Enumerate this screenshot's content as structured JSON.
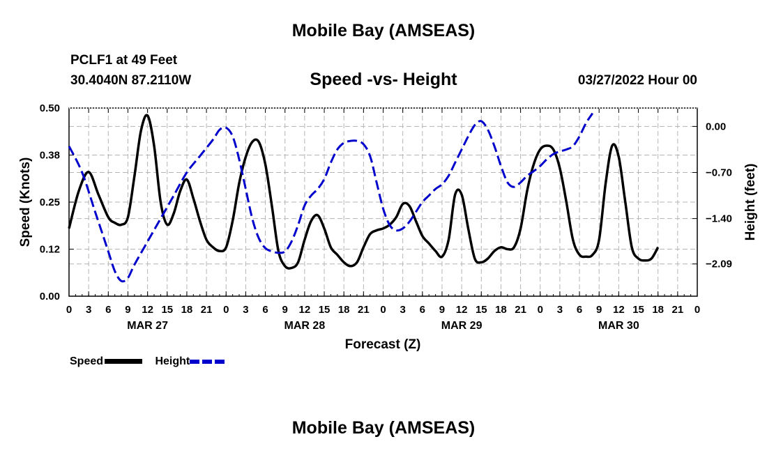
{
  "chart_data": {
    "type": "line",
    "title": "Mobile Bay (AMSEAS)",
    "station": "PCLF1 at 49 Feet",
    "location": "30.4040N  87.2110W",
    "subtitle": "Speed -vs- Height",
    "timestamp": "03/27/2022 Hour 00",
    "footer_title": "Mobile Bay (AMSEAS)",
    "xlabel": "Forecast (Z)",
    "ylabel_left": "Speed (Knots)",
    "ylabel_right": "Height (feet)",
    "x_range_hours": [
      0,
      96
    ],
    "y_left_range": [
      0,
      0.5
    ],
    "y_right_range": [
      -2.58,
      0.28
    ],
    "y_left_ticks": [
      "0.00",
      "0.12",
      "0.25",
      "0.38",
      "0.50"
    ],
    "y_left_tick_values": [
      0,
      0.125,
      0.25,
      0.375,
      0.5
    ],
    "y_right_ticks": [
      "0.00",
      "−0.70",
      "−1.40",
      "−2.09"
    ],
    "y_right_tick_values": [
      0,
      -0.7,
      -1.4,
      -2.09
    ],
    "x_tick_hours": [
      0,
      3,
      6,
      9,
      12,
      15,
      18,
      21,
      24,
      27,
      30,
      33,
      36,
      39,
      42,
      45,
      48,
      51,
      54,
      57,
      60,
      63,
      66,
      69,
      72,
      75,
      78,
      81,
      84,
      87,
      90,
      93,
      96
    ],
    "x_tick_labels": [
      "0",
      "3",
      "6",
      "9",
      "12",
      "15",
      "18",
      "21",
      "0",
      "3",
      "6",
      "9",
      "12",
      "15",
      "18",
      "21",
      "0",
      "3",
      "6",
      "9",
      "12",
      "15",
      "18",
      "21",
      "0",
      "3",
      "6",
      "9",
      "12",
      "15",
      "18",
      "21",
      "0"
    ],
    "day_labels": [
      {
        "hour": 12,
        "label": "MAR 27"
      },
      {
        "hour": 36,
        "label": "MAR 28"
      },
      {
        "hour": 60,
        "label": "MAR 29"
      },
      {
        "hour": 84,
        "label": "MAR 30"
      }
    ],
    "grid": true,
    "legend_position": "bottom-left",
    "series": [
      {
        "name": "Speed",
        "axis": "left",
        "color": "#000000",
        "style": "solid",
        "points": [
          [
            0,
            0.18
          ],
          [
            1.5,
            0.28
          ],
          [
            3,
            0.33
          ],
          [
            4.5,
            0.27
          ],
          [
            6,
            0.21
          ],
          [
            7,
            0.195
          ],
          [
            8,
            0.19
          ],
          [
            9,
            0.21
          ],
          [
            10,
            0.32
          ],
          [
            11,
            0.44
          ],
          [
            12,
            0.48
          ],
          [
            13,
            0.4
          ],
          [
            14,
            0.25
          ],
          [
            15,
            0.19
          ],
          [
            16,
            0.22
          ],
          [
            17,
            0.28
          ],
          [
            18,
            0.31
          ],
          [
            19,
            0.26
          ],
          [
            20,
            0.2
          ],
          [
            21,
            0.15
          ],
          [
            22,
            0.13
          ],
          [
            23,
            0.12
          ],
          [
            24,
            0.13
          ],
          [
            25,
            0.2
          ],
          [
            26,
            0.3
          ],
          [
            27,
            0.37
          ],
          [
            28,
            0.41
          ],
          [
            29,
            0.41
          ],
          [
            30,
            0.35
          ],
          [
            31,
            0.24
          ],
          [
            32,
            0.12
          ],
          [
            33,
            0.08
          ],
          [
            34,
            0.075
          ],
          [
            35,
            0.09
          ],
          [
            36,
            0.15
          ],
          [
            37,
            0.2
          ],
          [
            38,
            0.215
          ],
          [
            39,
            0.18
          ],
          [
            40,
            0.13
          ],
          [
            41,
            0.11
          ],
          [
            42,
            0.09
          ],
          [
            43,
            0.08
          ],
          [
            44,
            0.09
          ],
          [
            45,
            0.13
          ],
          [
            46,
            0.165
          ],
          [
            47,
            0.175
          ],
          [
            48,
            0.18
          ],
          [
            49,
            0.19
          ],
          [
            50,
            0.21
          ],
          [
            51,
            0.245
          ],
          [
            52,
            0.24
          ],
          [
            53,
            0.2
          ],
          [
            54,
            0.16
          ],
          [
            55,
            0.14
          ],
          [
            56,
            0.12
          ],
          [
            57,
            0.105
          ],
          [
            58,
            0.15
          ],
          [
            59,
            0.27
          ],
          [
            60,
            0.27
          ],
          [
            61,
            0.18
          ],
          [
            62,
            0.1
          ],
          [
            63,
            0.09
          ],
          [
            64,
            0.1
          ],
          [
            65,
            0.12
          ],
          [
            66,
            0.13
          ],
          [
            67,
            0.125
          ],
          [
            68,
            0.13
          ],
          [
            69,
            0.18
          ],
          [
            70,
            0.28
          ],
          [
            71,
            0.35
          ],
          [
            72,
            0.39
          ],
          [
            73,
            0.4
          ],
          [
            74,
            0.39
          ],
          [
            75,
            0.34
          ],
          [
            76,
            0.25
          ],
          [
            77,
            0.15
          ],
          [
            78,
            0.11
          ],
          [
            79,
            0.105
          ],
          [
            80,
            0.11
          ],
          [
            81,
            0.15
          ],
          [
            82,
            0.3
          ],
          [
            83,
            0.4
          ],
          [
            84,
            0.37
          ],
          [
            85,
            0.25
          ],
          [
            86,
            0.13
          ],
          [
            87,
            0.1
          ],
          [
            88,
            0.095
          ],
          [
            89,
            0.1
          ],
          [
            90,
            0.13
          ]
        ]
      },
      {
        "name": "Height",
        "axis": "right",
        "color": "#0000cc",
        "style": "dashed",
        "points": [
          [
            0,
            -0.3
          ],
          [
            2,
            -0.7
          ],
          [
            4,
            -1.3
          ],
          [
            6,
            -1.9
          ],
          [
            7,
            -2.2
          ],
          [
            8,
            -2.35
          ],
          [
            9,
            -2.3
          ],
          [
            10,
            -2.1
          ],
          [
            12,
            -1.75
          ],
          [
            14,
            -1.4
          ],
          [
            16,
            -1.05
          ],
          [
            18,
            -0.7
          ],
          [
            20,
            -0.45
          ],
          [
            22,
            -0.2
          ],
          [
            23,
            -0.05
          ],
          [
            24,
            -0.02
          ],
          [
            25,
            -0.15
          ],
          [
            26,
            -0.5
          ],
          [
            27,
            -0.95
          ],
          [
            28,
            -1.4
          ],
          [
            29,
            -1.7
          ],
          [
            30,
            -1.85
          ],
          [
            31,
            -1.9
          ],
          [
            32,
            -1.92
          ],
          [
            33,
            -1.9
          ],
          [
            34,
            -1.75
          ],
          [
            35,
            -1.5
          ],
          [
            36,
            -1.2
          ],
          [
            37,
            -1.05
          ],
          [
            38,
            -0.95
          ],
          [
            39,
            -0.8
          ],
          [
            40,
            -0.55
          ],
          [
            41,
            -0.35
          ],
          [
            42,
            -0.25
          ],
          [
            43,
            -0.22
          ],
          [
            44,
            -0.22
          ],
          [
            45,
            -0.27
          ],
          [
            46,
            -0.45
          ],
          [
            47,
            -0.85
          ],
          [
            48,
            -1.25
          ],
          [
            49,
            -1.5
          ],
          [
            50,
            -1.58
          ],
          [
            51,
            -1.55
          ],
          [
            52,
            -1.45
          ],
          [
            53,
            -1.3
          ],
          [
            54,
            -1.15
          ],
          [
            55,
            -1.05
          ],
          [
            56,
            -0.95
          ],
          [
            57,
            -0.88
          ],
          [
            58,
            -0.75
          ],
          [
            59,
            -0.55
          ],
          [
            60,
            -0.35
          ],
          [
            61,
            -0.15
          ],
          [
            62,
            0.02
          ],
          [
            63,
            0.08
          ],
          [
            64,
            -0.05
          ],
          [
            65,
            -0.3
          ],
          [
            66,
            -0.6
          ],
          [
            67,
            -0.85
          ],
          [
            68,
            -0.92
          ],
          [
            69,
            -0.85
          ],
          [
            70,
            -0.75
          ],
          [
            71,
            -0.68
          ],
          [
            72,
            -0.6
          ],
          [
            73,
            -0.5
          ],
          [
            74,
            -0.42
          ],
          [
            75,
            -0.38
          ],
          [
            76,
            -0.35
          ],
          [
            77,
            -0.3
          ],
          [
            78,
            -0.15
          ],
          [
            79,
            0.05
          ],
          [
            80,
            0.2
          ]
        ]
      }
    ]
  },
  "legend": [
    {
      "label": "Speed",
      "color": "#000000",
      "style": "solid"
    },
    {
      "label": "Height",
      "color": "#0000cc",
      "style": "dashed"
    }
  ]
}
